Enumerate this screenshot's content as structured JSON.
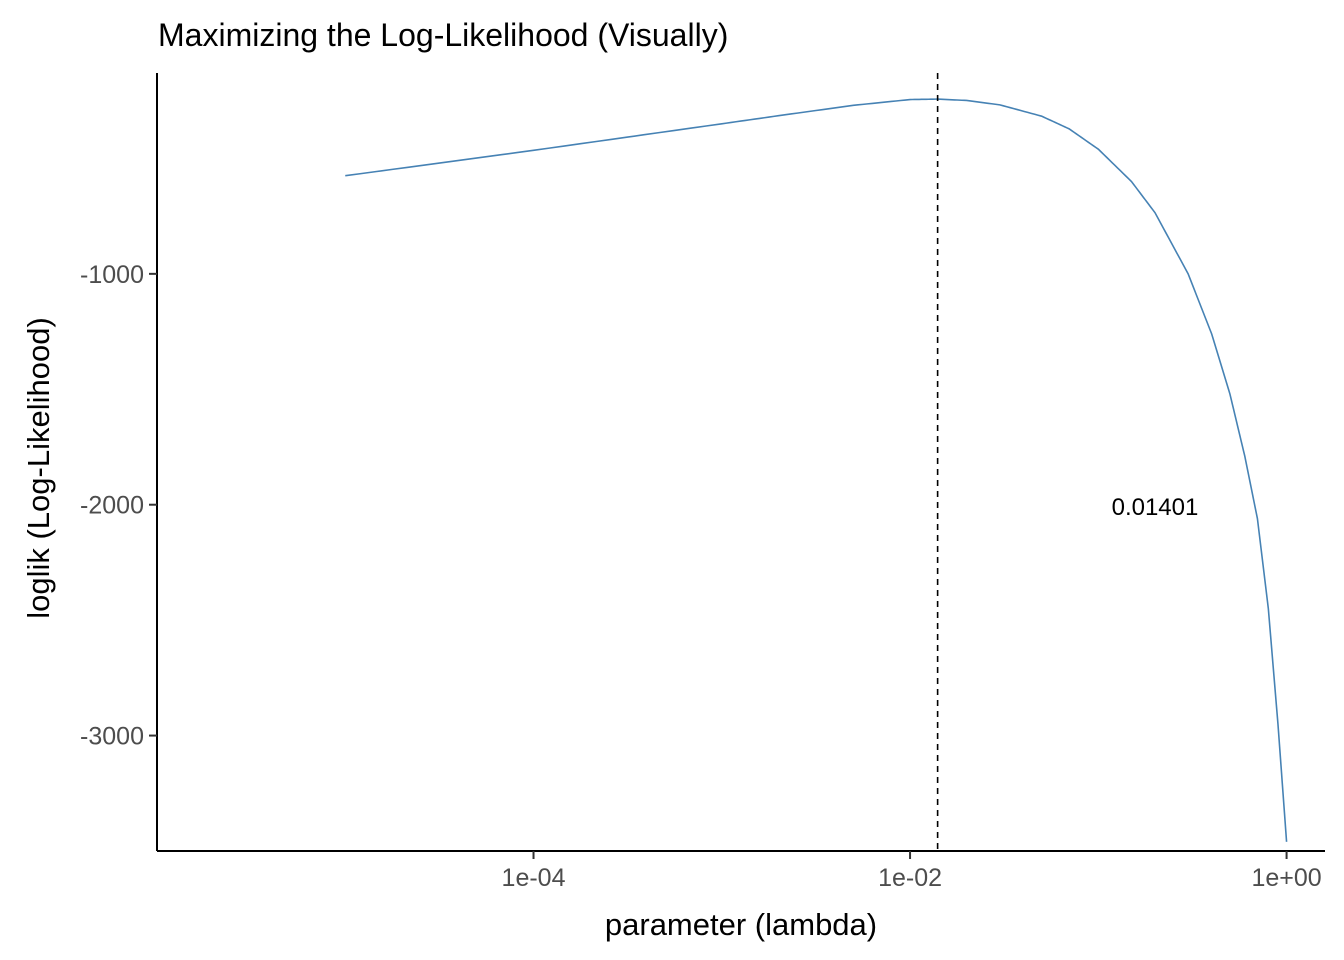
{
  "chart_data": {
    "type": "line",
    "title": "Maximizing the Log-Likelihood (Visually)",
    "xlabel": "parameter (lambda)",
    "ylabel": "loglik (Log-Likelihood)",
    "x_scale": "log10",
    "xlim": [
      1e-06,
      1.6
    ],
    "ylim": [
      -3500,
      -130
    ],
    "x_ticks": [
      {
        "value": 0.0001,
        "label": "1e-04"
      },
      {
        "value": 0.01,
        "label": "1e-02"
      },
      {
        "value": 1,
        "label": "1e+00"
      }
    ],
    "y_ticks": [
      {
        "value": -1000,
        "label": "-1000"
      },
      {
        "value": -2000,
        "label": "-2000"
      },
      {
        "value": -3000,
        "label": "-3000"
      }
    ],
    "grid": false,
    "legend": "none",
    "series": [
      {
        "color": "#4682b4",
        "x": [
          1e-05,
          0.0001,
          0.001,
          0.002,
          0.005,
          0.01,
          0.014,
          0.02,
          0.03,
          0.05,
          0.07,
          0.1,
          0.15,
          0.2,
          0.3,
          0.4,
          0.5,
          0.6,
          0.7,
          0.8,
          0.9,
          1.0
        ],
        "y": [
          -575,
          -465,
          -350,
          -315,
          -270,
          -245,
          -243,
          -249,
          -268,
          -317,
          -372,
          -460,
          -600,
          -735,
          -1000,
          -1260,
          -1520,
          -1790,
          -2060,
          -2450,
          -2950,
          -3460
        ]
      }
    ],
    "reference_line": {
      "axis": "x",
      "value": 0.01401,
      "style": "dashed",
      "color": "#000000"
    },
    "annotations": [
      {
        "text": "0.01401",
        "x": 0.2,
        "y": -2010
      }
    ]
  }
}
